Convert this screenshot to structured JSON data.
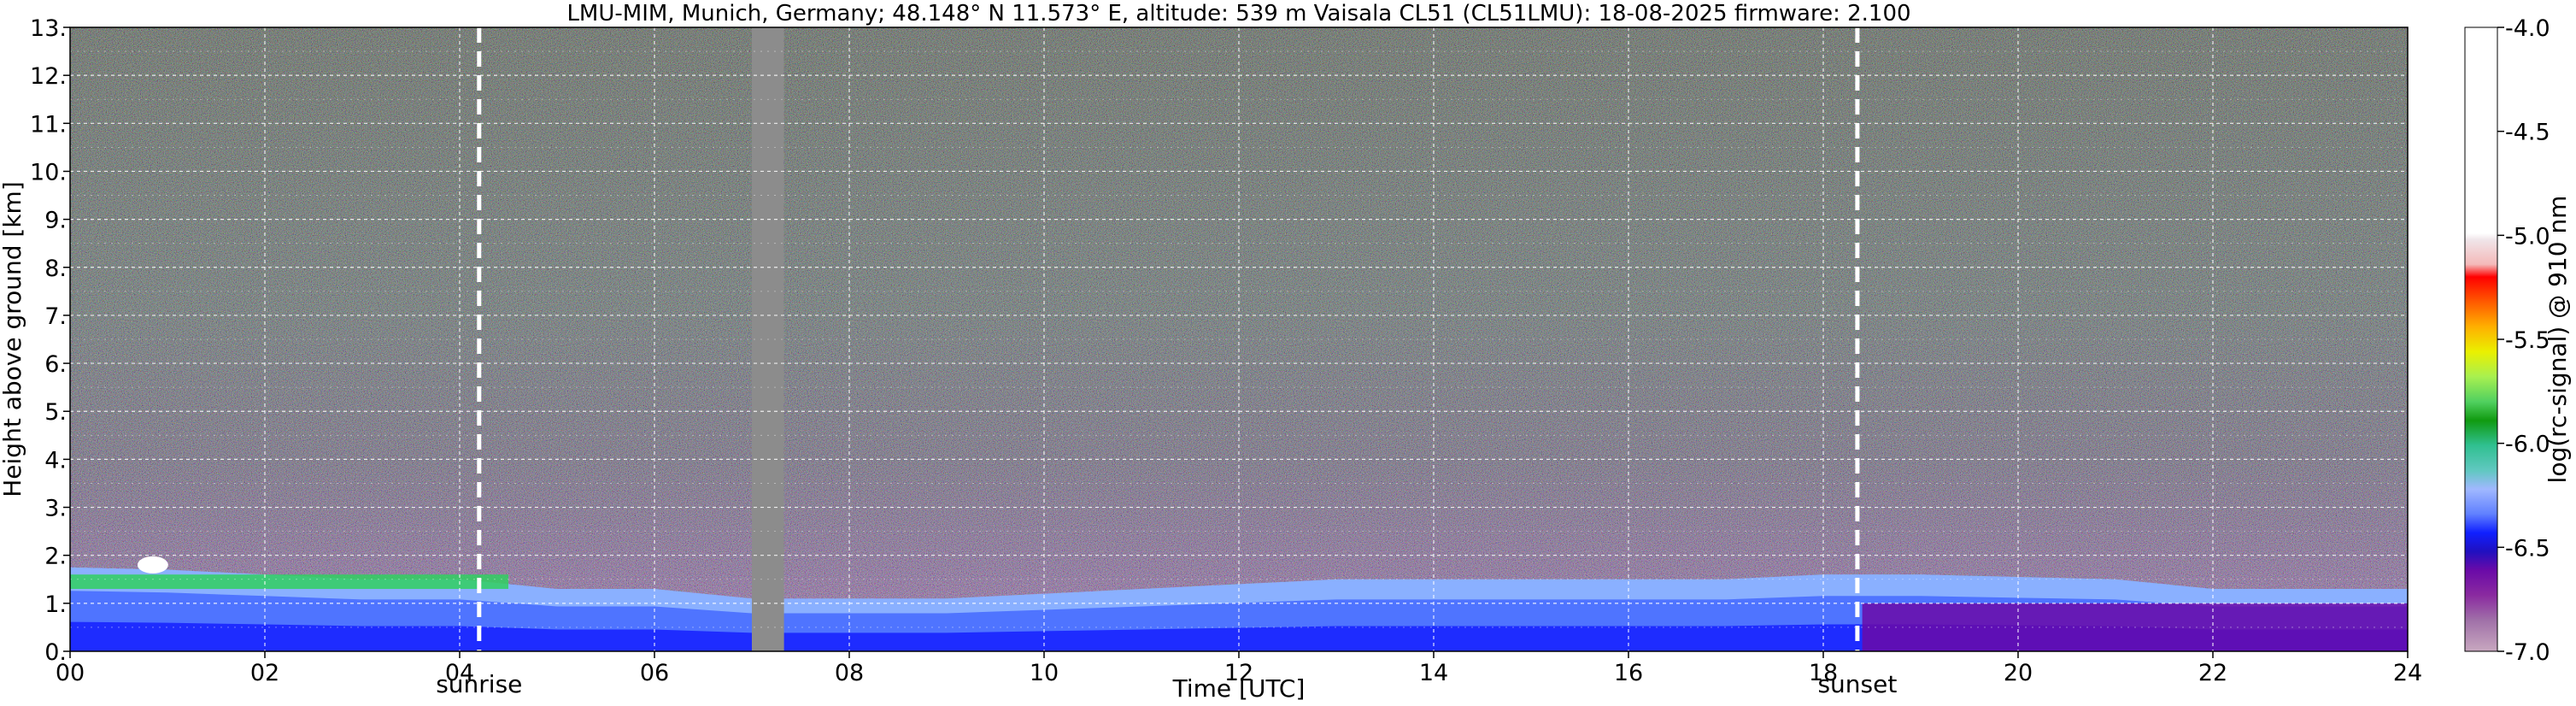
{
  "chart_data": {
    "type": "heatmap",
    "title": "LMU-MIM, Munich, Germany; 48.148° N 11.573° E, altitude: 539 m    Vaisala CL51 (CL51LMU): 18-08-2025    firmware: 2.100",
    "xlabel": "Time [UTC]",
    "ylabel": "Height above ground [km]",
    "xlim": [
      0,
      24
    ],
    "ylim": [
      0,
      13
    ],
    "x_ticks": [
      "00",
      "02",
      "04",
      "06",
      "08",
      "10",
      "12",
      "14",
      "16",
      "18",
      "20",
      "22",
      "24"
    ],
    "y_ticks": [
      "0.",
      "1.",
      "2.",
      "3.",
      "4.",
      "5.",
      "6.",
      "7.",
      "8.",
      "9.",
      "10.",
      "11.",
      "12.",
      "13."
    ],
    "grid": true,
    "colorbar": {
      "label": "log(rc-signal) @ 910 nm",
      "range": [
        -7.0,
        -4.0
      ],
      "ticks": [
        "-4.0",
        "-4.5",
        "-5.0",
        "-5.5",
        "-6.0",
        "-6.5",
        "-7.0"
      ]
    },
    "markers": [
      {
        "label": "sunrise",
        "time": 4.2
      },
      {
        "label": "sunset",
        "time": 18.35
      }
    ],
    "data_gap": {
      "start": 7.0,
      "end": 7.33
    },
    "layers": {
      "aerosol_layer_top_km": [
        1.75,
        1.7,
        1.6,
        1.5,
        1.5,
        1.3,
        1.3,
        1.1,
        1.1,
        1.1,
        1.2,
        1.3,
        1.4,
        1.5,
        1.5,
        1.5,
        1.5,
        1.5,
        1.6,
        1.6,
        1.55,
        1.5,
        1.3,
        1.3,
        1.3
      ],
      "note_clouds_near": {
        "time": 0.85,
        "height_km": 1.8
      }
    }
  }
}
